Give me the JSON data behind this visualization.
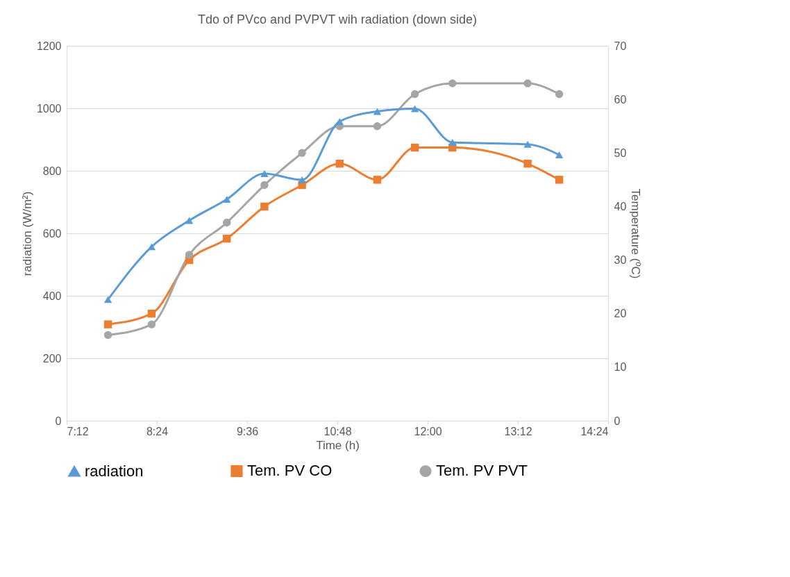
{
  "chart_data": {
    "type": "line",
    "title": "Tdo of PVco and PVPVT wih radiation (down side)",
    "xlabel": "Time (h)",
    "ylabel": "radiation (W/m²)",
    "y2label": "Temperature (ºC)",
    "x": [
      7.75,
      8.33,
      8.83,
      9.33,
      9.83,
      10.33,
      10.83,
      11.33,
      11.83,
      12.33,
      13.33,
      13.75
    ],
    "series": [
      {
        "name": "radiation",
        "color": "#5b9bd5",
        "marker": "triangle",
        "values": [
          388,
          557,
          641,
          709,
          791,
          771,
          958,
          990,
          999,
          891,
          885,
          851
        ]
      },
      {
        "name": "Tem. PV CO",
        "color": "#ed7d31",
        "marker": "square",
        "axis": "y2",
        "values": [
          18,
          20,
          30,
          34,
          40,
          44,
          48,
          45,
          51,
          51,
          48,
          45
        ]
      },
      {
        "name": "Tem. PV PVT",
        "color": "#a5a5a5",
        "marker": "circle",
        "axis": "y2",
        "values": [
          16,
          18,
          31,
          37,
          44,
          50,
          55,
          55,
          61,
          63,
          63,
          61
        ]
      }
    ],
    "xlim": [
      7.2,
      14.4
    ],
    "xticks": [
      {
        "value": 7.2,
        "label": "7:12"
      },
      {
        "value": 8.4,
        "label": "8:24"
      },
      {
        "value": 9.6,
        "label": "9:36"
      },
      {
        "value": 10.8,
        "label": "10:48"
      },
      {
        "value": 12.0,
        "label": "12:00"
      },
      {
        "value": 13.2,
        "label": "13:12"
      },
      {
        "value": 14.4,
        "label": "14:24"
      }
    ],
    "ylim": [
      0,
      1200
    ],
    "yticks": [
      0,
      200,
      400,
      600,
      800,
      1000,
      1200
    ],
    "y2lim": [
      0,
      70
    ],
    "y2ticks": [
      0,
      10,
      20,
      30,
      40,
      50,
      60,
      70
    ],
    "grid": "y",
    "legend": "bottom",
    "line_style": "solid"
  }
}
